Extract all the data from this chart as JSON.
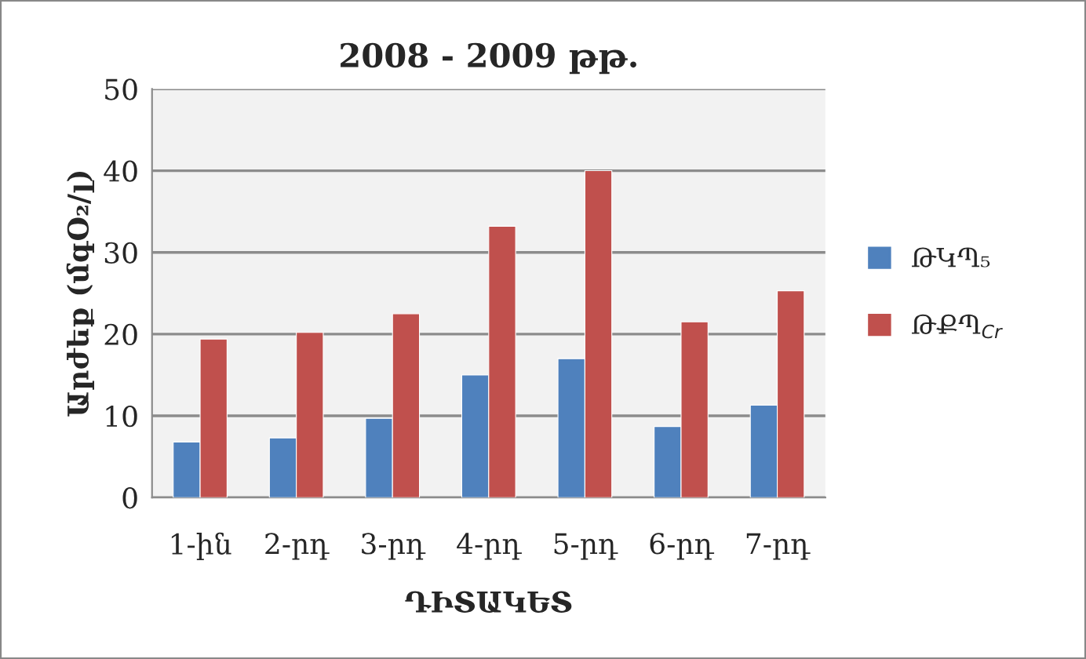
{
  "chart_data": {
    "type": "bar",
    "title": "2008 - 2009 թթ.",
    "xlabel": "ԴԻՏԱԿԵՏ",
    "ylabel": "Արժեք (մգO₂/լ)",
    "categories": [
      "1-ին",
      "2-րդ",
      "3-րդ",
      "4-րդ",
      "5-րդ",
      "6-րդ",
      "7-րդ"
    ],
    "series": [
      {
        "name": "ԹԿՊ₅",
        "color": "#4f81bd",
        "values": [
          6.8,
          7.3,
          9.7,
          15,
          17,
          8.7,
          11.3
        ]
      },
      {
        "name": "ԹՔՊ$_{Cr}$",
        "color": "#c0504d",
        "values": [
          19.4,
          20.2,
          22.5,
          33.2,
          40,
          21.5,
          25.3
        ]
      }
    ],
    "ylim": [
      0,
      50
    ],
    "yticks": [
      0,
      10,
      20,
      30,
      40,
      50
    ],
    "grid": "y",
    "legend": "right"
  }
}
